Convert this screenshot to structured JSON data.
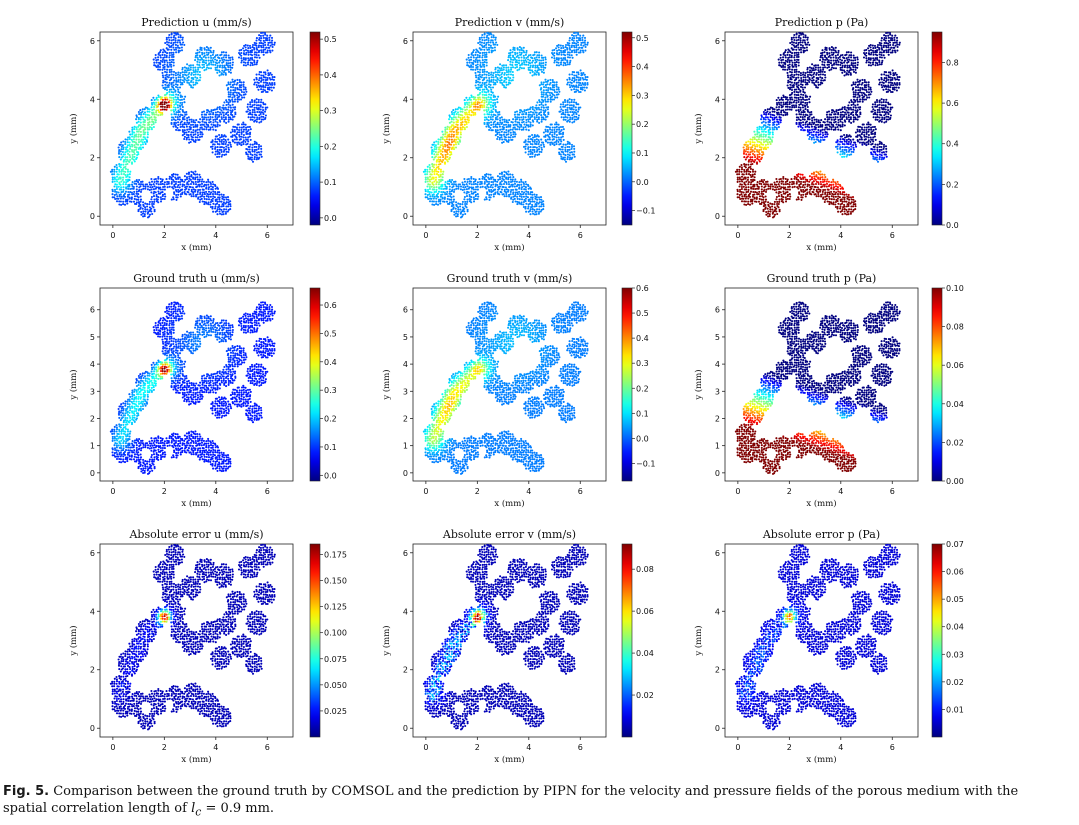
{
  "caption": {
    "label": "Fig. 5.",
    "text_before": "Comparison between the ground truth by COMSOL and the prediction by PIPN for the velocity and pressure fields of the porous medium with the spatial correlation length of ",
    "symbol": "l",
    "subscript": "c",
    "text_after": " = 0.9 mm."
  },
  "colors": {
    "colormap": "jet",
    "low": "#00008f",
    "high": "#800000"
  },
  "chart_data": [
    {
      "type": "scatter",
      "title": "Prediction u (mm/s)",
      "quantity": "u",
      "xlabel": "x (mm)",
      "ylabel": "y (mm)",
      "xlim": [
        -0.5,
        7
      ],
      "ylim": [
        -0.3,
        6.3
      ],
      "xticks": [
        0,
        2,
        4,
        6
      ],
      "yticks": [
        0,
        2,
        4,
        6
      ],
      "colorbar": {
        "min": -0.02,
        "max": 0.52,
        "ticks": [
          0.0,
          0.1,
          0.2,
          0.3,
          0.4,
          0.5
        ],
        "tick_labels": [
          "0.0",
          "0.1",
          "0.2",
          "0.3",
          "0.4",
          "0.5"
        ]
      }
    },
    {
      "type": "scatter",
      "title": "Prediction v (mm/s)",
      "quantity": "v",
      "xlabel": "x (mm)",
      "ylabel": "y (mm)",
      "xlim": [
        -0.5,
        7
      ],
      "ylim": [
        -0.3,
        6.3
      ],
      "xticks": [
        0,
        2,
        4,
        6
      ],
      "yticks": [
        0,
        2,
        4,
        6
      ],
      "colorbar": {
        "min": -0.15,
        "max": 0.52,
        "ticks": [
          -0.1,
          0.0,
          0.1,
          0.2,
          0.3,
          0.4,
          0.5
        ],
        "tick_labels": [
          "−0.1",
          "0.0",
          "0.1",
          "0.2",
          "0.3",
          "0.4",
          "0.5"
        ]
      }
    },
    {
      "type": "scatter",
      "title": "Prediction p (Pa)",
      "quantity": "p",
      "xlabel": "x (mm)",
      "ylabel": "y (mm)",
      "xlim": [
        -0.5,
        7
      ],
      "ylim": [
        -0.3,
        6.3
      ],
      "xticks": [
        0,
        2,
        4,
        6
      ],
      "yticks": [
        0,
        2,
        4,
        6
      ],
      "colorbar": {
        "min": 0.0,
        "max": 0.95,
        "ticks": [
          0.0,
          0.2,
          0.4,
          0.6,
          0.8
        ],
        "tick_labels": [
          "0.0",
          "0.2",
          "0.4",
          "0.6",
          "0.8"
        ]
      }
    },
    {
      "type": "scatter",
      "title": "Ground truth u (mm/s)",
      "quantity": "u",
      "xlabel": "x (mm)",
      "ylabel": "y (mm)",
      "xlim": [
        -0.5,
        7
      ],
      "ylim": [
        -0.3,
        6.8
      ],
      "xticks": [
        0,
        2,
        4,
        6
      ],
      "yticks": [
        0,
        1,
        2,
        3,
        4,
        5,
        6
      ],
      "colorbar": {
        "min": -0.02,
        "max": 0.66,
        "ticks": [
          0.0,
          0.1,
          0.2,
          0.3,
          0.4,
          0.5,
          0.6
        ],
        "tick_labels": [
          "0.0",
          "0.1",
          "0.2",
          "0.3",
          "0.4",
          "0.5",
          "0.6"
        ]
      }
    },
    {
      "type": "scatter",
      "title": "Ground truth v (mm/s)",
      "quantity": "v",
      "xlabel": "x (mm)",
      "ylabel": "y (mm)",
      "xlim": [
        -0.5,
        7
      ],
      "ylim": [
        -0.3,
        6.8
      ],
      "xticks": [
        0,
        2,
        4,
        6
      ],
      "yticks": [
        0,
        1,
        2,
        3,
        4,
        5,
        6
      ],
      "colorbar": {
        "min": -0.17,
        "max": 0.6,
        "ticks": [
          -0.1,
          0.0,
          0.1,
          0.2,
          0.3,
          0.4,
          0.5,
          0.6
        ],
        "tick_labels": [
          "−0.1",
          "0.0",
          "0.1",
          "0.2",
          "0.3",
          "0.4",
          "0.5",
          "0.6"
        ]
      }
    },
    {
      "type": "scatter",
      "title": "Ground truth p (Pa)",
      "quantity": "p",
      "xlabel": "x (mm)",
      "ylabel": "y (mm)",
      "xlim": [
        -0.5,
        7
      ],
      "ylim": [
        -0.3,
        6.8
      ],
      "xticks": [
        0,
        2,
        4,
        6
      ],
      "yticks": [
        0,
        1,
        2,
        3,
        4,
        5,
        6
      ],
      "colorbar": {
        "min": 0.0,
        "max": 0.1,
        "ticks": [
          0.0,
          0.02,
          0.04,
          0.06,
          0.08,
          0.1
        ],
        "tick_labels": [
          "0.00",
          "0.02",
          "0.04",
          "0.06",
          "0.08",
          "0.10"
        ]
      }
    },
    {
      "type": "scatter",
      "title": "Absolute error u (mm/s)",
      "quantity": "eu",
      "xlabel": "x (mm)",
      "ylabel": "y (mm)",
      "xlim": [
        -0.5,
        7
      ],
      "ylim": [
        -0.3,
        6.3
      ],
      "xticks": [
        0,
        2,
        4,
        6
      ],
      "yticks": [
        0,
        2,
        4,
        6
      ],
      "colorbar": {
        "min": 0.0,
        "max": 0.185,
        "ticks": [
          0.025,
          0.05,
          0.075,
          0.1,
          0.125,
          0.15,
          0.175
        ],
        "tick_labels": [
          "0.025",
          "0.050",
          "0.075",
          "0.100",
          "0.125",
          "0.150",
          "0.175"
        ]
      }
    },
    {
      "type": "scatter",
      "title": "Absolute error v (mm/s)",
      "quantity": "ev",
      "xlabel": "x (mm)",
      "ylabel": "y (mm)",
      "xlim": [
        -0.5,
        7
      ],
      "ylim": [
        -0.3,
        6.3
      ],
      "xticks": [
        0,
        2,
        4,
        6
      ],
      "yticks": [
        0,
        2,
        4,
        6
      ],
      "colorbar": {
        "min": 0.0,
        "max": 0.092,
        "ticks": [
          0.02,
          0.04,
          0.06,
          0.08
        ],
        "tick_labels": [
          "0.02",
          "0.04",
          "0.06",
          "0.08"
        ]
      }
    },
    {
      "type": "scatter",
      "title": "Absolute error p (Pa)",
      "quantity": "ep",
      "xlabel": "x (mm)",
      "ylabel": "y (mm)",
      "xlim": [
        -0.5,
        7
      ],
      "ylim": [
        -0.3,
        6.3
      ],
      "xticks": [
        0,
        2,
        4,
        6
      ],
      "yticks": [
        0,
        2,
        4,
        6
      ],
      "colorbar": {
        "min": 0.0,
        "max": 0.07,
        "ticks": [
          0.01,
          0.02,
          0.03,
          0.04,
          0.05,
          0.06,
          0.07
        ],
        "tick_labels": [
          "0.01",
          "0.02",
          "0.03",
          "0.04",
          "0.05",
          "0.06",
          "0.07"
        ]
      }
    }
  ]
}
